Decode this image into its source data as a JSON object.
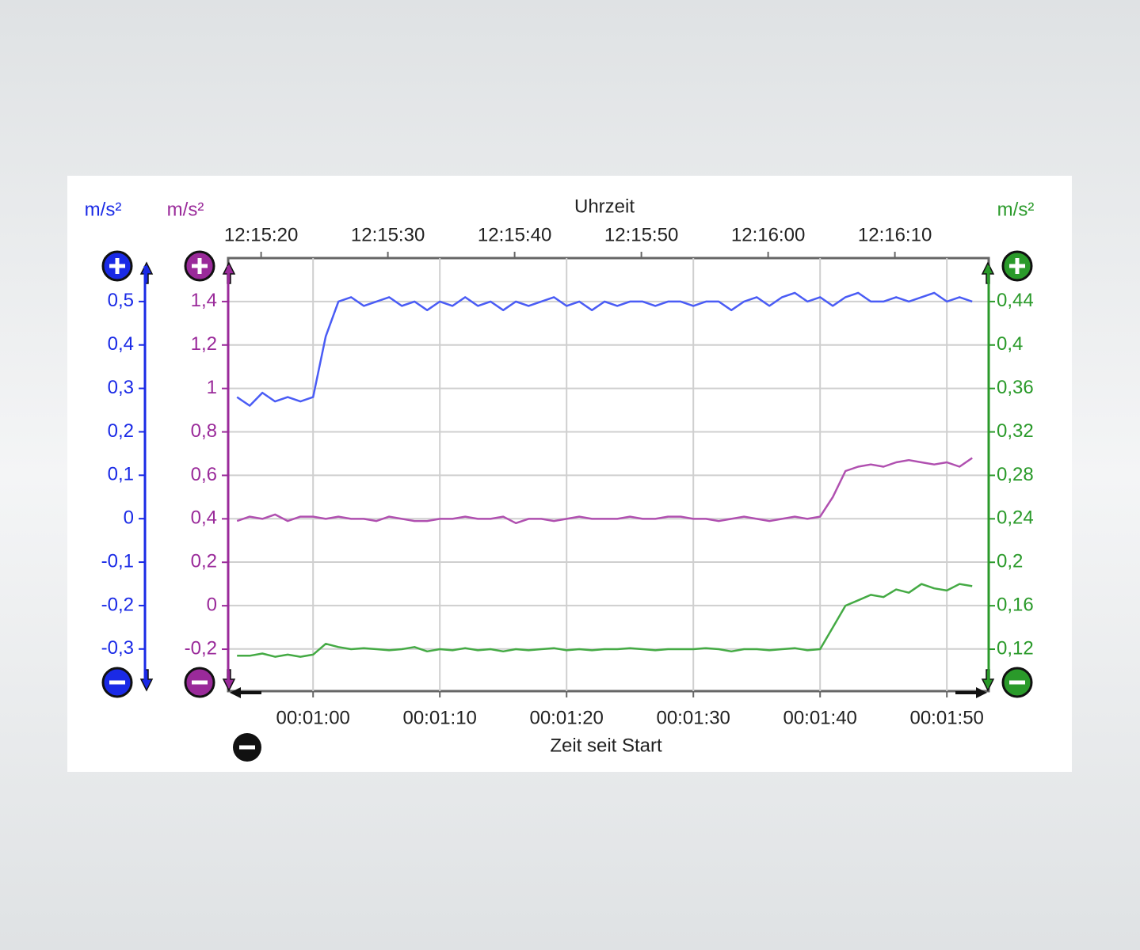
{
  "chart_data": {
    "type": "line",
    "title": "Uhrzeit",
    "xlabel": "Zeit seit Start",
    "xlim": [
      53.3,
      113.3
    ],
    "xticks": [
      {
        "value": 60,
        "label": "00:01:00"
      },
      {
        "value": 70,
        "label": "00:01:10"
      },
      {
        "value": 80,
        "label": "00:01:20"
      },
      {
        "value": 90,
        "label": "00:01:30"
      },
      {
        "value": 100,
        "label": "00:01:40"
      },
      {
        "value": 110,
        "label": "00:01:50"
      }
    ],
    "x2ticks": [
      {
        "value": 55.9,
        "label": "12:15:20"
      },
      {
        "value": 65.9,
        "label": "12:15:30"
      },
      {
        "value": 75.9,
        "label": "12:15:40"
      },
      {
        "value": 85.9,
        "label": "12:15:50"
      },
      {
        "value": 95.9,
        "label": "12:16:00"
      },
      {
        "value": 105.9,
        "label": "12:16:10"
      }
    ],
    "ylabel": "m/s²",
    "ylim": [
      -0.397,
      0.6
    ],
    "yticks": [
      {
        "value": -0.3,
        "label": "-0,3"
      },
      {
        "value": -0.2,
        "label": "-0,2"
      },
      {
        "value": -0.1,
        "label": "-0,1"
      },
      0,
      {
        "value": 0.1,
        "label": "0,1"
      },
      {
        "value": 0.2,
        "label": "0,2"
      },
      {
        "value": 0.3,
        "label": "0,3"
      },
      {
        "value": 0.4,
        "label": "0,4"
      },
      {
        "value": 0.5,
        "label": "0,5"
      }
    ],
    "y2label": "m/s²",
    "y2lim": [
      -0.393,
      1.6
    ],
    "y2ticks": [
      {
        "value": -0.2,
        "label": "-0,2"
      },
      0,
      {
        "value": 0.2,
        "label": "0,2"
      },
      {
        "value": 0.4,
        "label": "0,4"
      },
      {
        "value": 0.6,
        "label": "0,6"
      },
      {
        "value": 0.8,
        "label": "0,8"
      },
      1,
      {
        "value": 1.2,
        "label": "1,2"
      },
      {
        "value": 1.4,
        "label": "1,4"
      }
    ],
    "y3label": "m/s²",
    "y3lim": [
      0.0814,
      0.48
    ],
    "y3ticks": [
      {
        "value": 0.12,
        "label": "0,12"
      },
      {
        "value": 0.16,
        "label": "0,16"
      },
      {
        "value": 0.2,
        "label": "0,2"
      },
      {
        "value": 0.24,
        "label": "0,24"
      },
      {
        "value": 0.28,
        "label": "0,28"
      },
      {
        "value": 0.32,
        "label": "0,32"
      },
      {
        "value": 0.36,
        "label": "0,36"
      },
      {
        "value": 0.4,
        "label": "0,4"
      },
      {
        "value": 0.44,
        "label": "0,44"
      }
    ],
    "grid": true,
    "x": [
      54,
      55,
      56,
      57,
      58,
      59,
      60,
      61,
      62,
      63,
      64,
      65,
      66,
      67,
      68,
      69,
      70,
      71,
      72,
      73,
      74,
      75,
      76,
      77,
      78,
      79,
      80,
      81,
      82,
      83,
      84,
      85,
      86,
      87,
      88,
      89,
      90,
      91,
      92,
      93,
      94,
      95,
      96,
      97,
      98,
      99,
      100,
      101,
      102,
      103,
      104,
      105,
      106,
      107,
      108,
      109,
      110,
      111,
      112
    ],
    "series": [
      {
        "axis": "y",
        "color": "#4a5cf5",
        "axis_color": "#1a2ae6",
        "values": [
          0.28,
          0.26,
          0.29,
          0.27,
          0.28,
          0.27,
          0.28,
          0.42,
          0.5,
          0.51,
          0.49,
          0.5,
          0.51,
          0.49,
          0.5,
          0.48,
          0.5,
          0.49,
          0.51,
          0.49,
          0.5,
          0.48,
          0.5,
          0.49,
          0.5,
          0.51,
          0.49,
          0.5,
          0.48,
          0.5,
          0.49,
          0.5,
          0.5,
          0.49,
          0.5,
          0.5,
          0.49,
          0.5,
          0.5,
          0.48,
          0.5,
          0.51,
          0.49,
          0.51,
          0.52,
          0.5,
          0.51,
          0.49,
          0.51,
          0.52,
          0.5,
          0.5,
          0.51,
          0.5,
          0.51,
          0.52,
          0.5,
          0.51,
          0.5
        ]
      },
      {
        "axis": "y2",
        "color": "#b050b0",
        "axis_color": "#9a2a9a",
        "values": [
          0.39,
          0.41,
          0.4,
          0.42,
          0.39,
          0.41,
          0.41,
          0.4,
          0.41,
          0.4,
          0.4,
          0.39,
          0.41,
          0.4,
          0.39,
          0.39,
          0.4,
          0.4,
          0.41,
          0.4,
          0.4,
          0.41,
          0.38,
          0.4,
          0.4,
          0.39,
          0.4,
          0.41,
          0.4,
          0.4,
          0.4,
          0.41,
          0.4,
          0.4,
          0.41,
          0.41,
          0.4,
          0.4,
          0.39,
          0.4,
          0.41,
          0.4,
          0.39,
          0.4,
          0.41,
          0.4,
          0.41,
          0.5,
          0.62,
          0.64,
          0.65,
          0.64,
          0.66,
          0.67,
          0.66,
          0.65,
          0.66,
          0.64,
          0.68
        ]
      },
      {
        "axis": "y3",
        "color": "#44aa44",
        "axis_color": "#2a9a2a",
        "values": [
          0.114,
          0.114,
          0.116,
          0.113,
          0.115,
          0.113,
          0.115,
          0.125,
          0.122,
          0.12,
          0.121,
          0.12,
          0.119,
          0.12,
          0.122,
          0.118,
          0.12,
          0.119,
          0.121,
          0.119,
          0.12,
          0.118,
          0.12,
          0.119,
          0.12,
          0.121,
          0.119,
          0.12,
          0.119,
          0.12,
          0.12,
          0.121,
          0.12,
          0.119,
          0.12,
          0.12,
          0.12,
          0.121,
          0.12,
          0.118,
          0.12,
          0.12,
          0.119,
          0.12,
          0.121,
          0.119,
          0.12,
          0.14,
          0.16,
          0.165,
          0.17,
          0.168,
          0.175,
          0.172,
          0.18,
          0.176,
          0.174,
          0.18,
          0.178
        ]
      }
    ]
  }
}
